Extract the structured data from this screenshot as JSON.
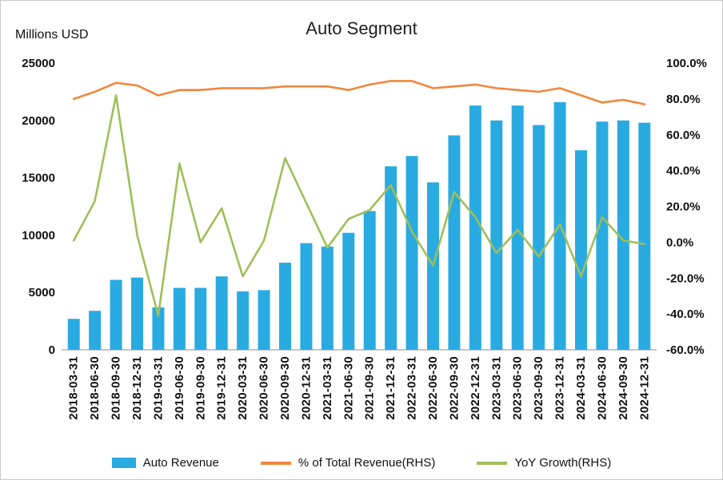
{
  "chart_data": {
    "type": "bar",
    "title": "Auto Segment",
    "legend_position": "bottom",
    "grid": false,
    "left_axis": {
      "title": "Millions USD",
      "min": 0,
      "max": 25000,
      "ticks": [
        0,
        5000,
        10000,
        15000,
        20000,
        25000
      ]
    },
    "right_axis": {
      "min": -60,
      "max": 100,
      "ticks": [
        100,
        80,
        60,
        40,
        20,
        0,
        -20,
        -40,
        -60
      ],
      "format": "percent_one_decimal"
    },
    "categories": [
      "2018-03-31",
      "2018-06-30",
      "2018-09-30",
      "2018-12-31",
      "2019-03-31",
      "2019-06-30",
      "2019-09-30",
      "2019-12-31",
      "2020-03-31",
      "2020-06-30",
      "2020-09-30",
      "2020-12-31",
      "2021-03-31",
      "2021-06-30",
      "2021-09-30",
      "2021-12-31",
      "2022-03-31",
      "2022-06-30",
      "2022-09-30",
      "2022-12-31",
      "2023-03-31",
      "2023-06-30",
      "2023-09-30",
      "2023-12-31",
      "2024-03-31",
      "2024-06-30",
      "2024-09-30",
      "2024-12-31"
    ],
    "series": [
      {
        "name": "Auto Revenue",
        "type": "bar",
        "axis": "left",
        "color": "#29ABE2",
        "values": [
          2700,
          3400,
          6100,
          6300,
          3700,
          5400,
          5400,
          6400,
          5100,
          5200,
          7600,
          9300,
          9000,
          10200,
          12100,
          16000,
          16900,
          14600,
          18700,
          21300,
          20000,
          21300,
          19600,
          21600,
          17400,
          19900,
          20000,
          19800
        ]
      },
      {
        "name": "% of Total Revenue(RHS)",
        "type": "line",
        "axis": "right",
        "color": "#F0883C",
        "values": [
          80,
          84,
          89,
          87.5,
          82,
          85,
          85,
          86,
          86,
          86,
          87,
          87,
          87,
          85,
          88,
          90,
          90,
          86,
          87,
          88,
          86,
          85,
          84,
          86,
          82,
          78,
          79.5,
          77
        ]
      },
      {
        "name": "YoY Growth(RHS)",
        "type": "line",
        "axis": "right",
        "color": "#9FBF59",
        "values": [
          1,
          23,
          82,
          4,
          -41,
          44,
          0,
          19,
          -19,
          1,
          47,
          22,
          -3,
          13,
          18,
          32,
          6,
          -13,
          28,
          14,
          -6,
          7,
          -8,
          10,
          -19,
          14,
          1,
          -1
        ]
      }
    ]
  }
}
